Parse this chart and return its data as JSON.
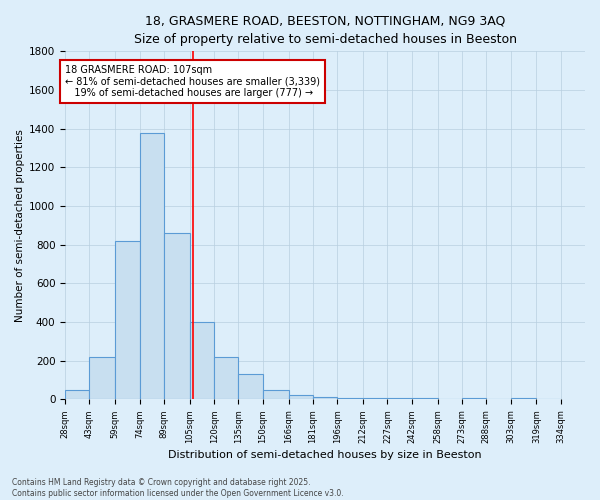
{
  "title_line1": "18, GRASMERE ROAD, BEESTON, NOTTINGHAM, NG9 3AQ",
  "title_line2": "Size of property relative to semi-detached houses in Beeston",
  "xlabel": "Distribution of semi-detached houses by size in Beeston",
  "ylabel": "Number of semi-detached properties",
  "bin_labels": [
    "28sqm",
    "43sqm",
    "59sqm",
    "74sqm",
    "89sqm",
    "105sqm",
    "120sqm",
    "135sqm",
    "150sqm",
    "166sqm",
    "181sqm",
    "196sqm",
    "212sqm",
    "227sqm",
    "242sqm",
    "258sqm",
    "273sqm",
    "288sqm",
    "303sqm",
    "319sqm",
    "334sqm"
  ],
  "bin_edges": [
    28,
    43,
    59,
    74,
    89,
    105,
    120,
    135,
    150,
    166,
    181,
    196,
    212,
    227,
    242,
    258,
    273,
    288,
    303,
    319,
    334
  ],
  "bar_heights": [
    50,
    220,
    820,
    1380,
    860,
    400,
    220,
    130,
    50,
    25,
    15,
    10,
    5,
    5,
    5,
    0,
    5,
    0,
    5,
    0
  ],
  "bar_color": "#c8dff0",
  "bar_edge_color": "#5b9bd5",
  "property_size": 107,
  "red_line_color": "#ff0000",
  "annotation_text": "18 GRASMERE ROAD: 107sqm\n← 81% of semi-detached houses are smaller (3,339)\n   19% of semi-detached houses are larger (777) →",
  "annotation_box_color": "#ffffff",
  "annotation_box_edge": "#cc0000",
  "ylim": [
    0,
    1800
  ],
  "yticks": [
    0,
    200,
    400,
    600,
    800,
    1000,
    1200,
    1400,
    1600,
    1800
  ],
  "bg_color": "#ddeefa",
  "grid_color": "#b8cfe0",
  "footer_text": "Contains HM Land Registry data © Crown copyright and database right 2025.\nContains public sector information licensed under the Open Government Licence v3.0.",
  "title_fontsize": 9,
  "subtitle_fontsize": 8.5
}
